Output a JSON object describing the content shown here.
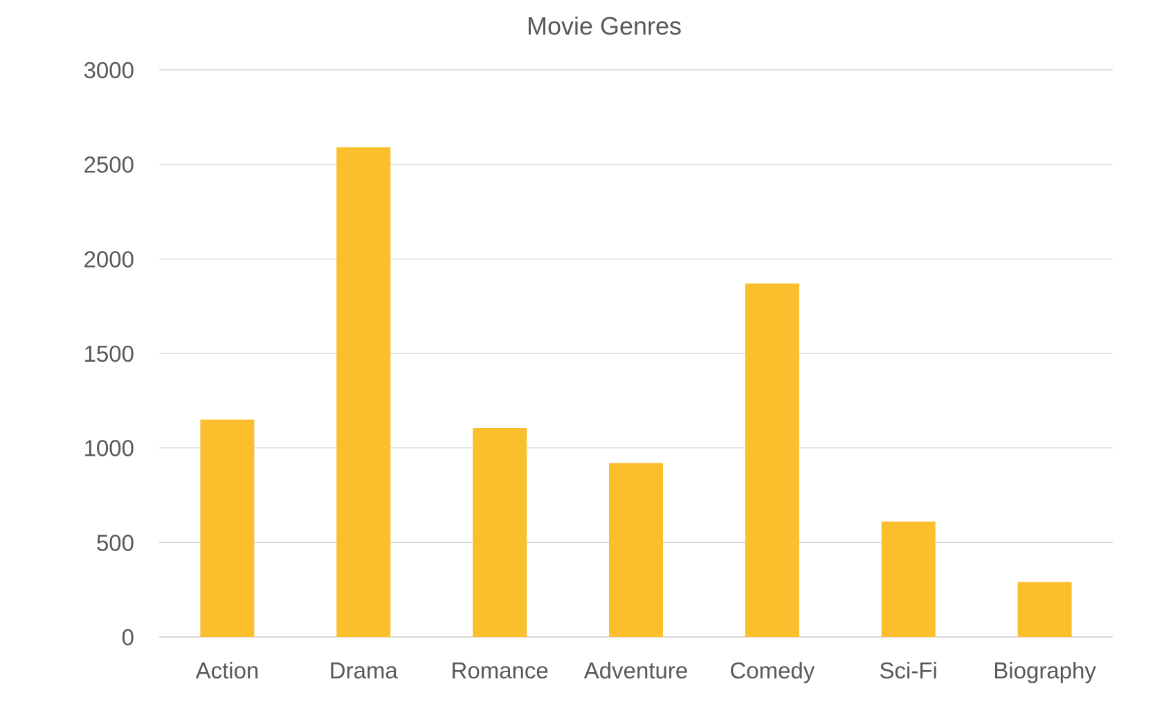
{
  "chart_data": {
    "type": "bar",
    "title": "Movie Genres",
    "categories": [
      "Action",
      "Drama",
      "Romance",
      "Adventure",
      "Comedy",
      "Sci-Fi",
      "Biography"
    ],
    "values": [
      1150,
      2590,
      1105,
      920,
      1870,
      610,
      290
    ],
    "ylim": [
      0,
      3000
    ],
    "yticks": [
      0,
      500,
      1000,
      1500,
      2000,
      2500,
      3000
    ],
    "xlabel": "",
    "ylabel": "",
    "grid": true,
    "legend": "none",
    "bar_color": "#FBBF2E",
    "text_color": "#595959",
    "grid_color": "#D9D9D9"
  }
}
